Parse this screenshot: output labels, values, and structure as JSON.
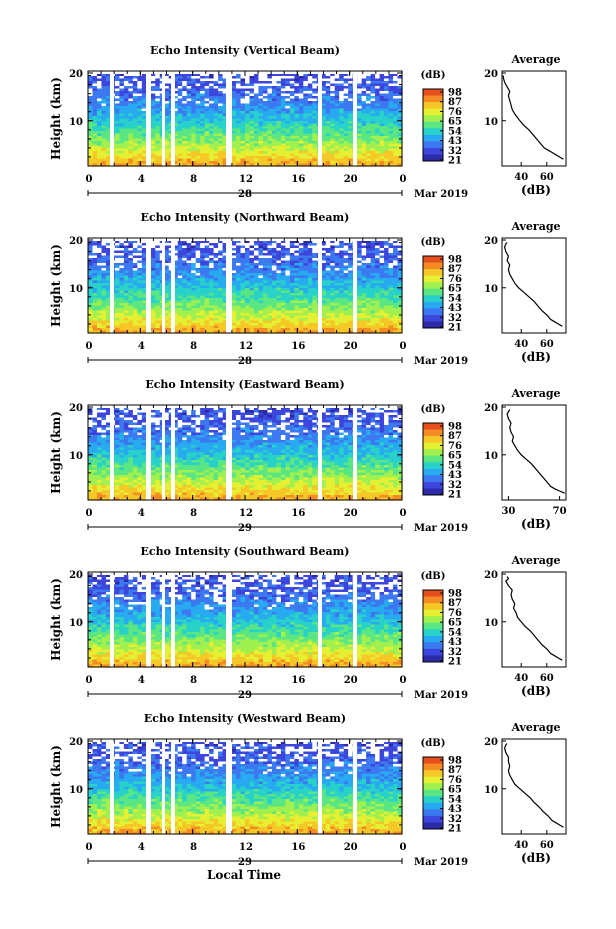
{
  "chart_data": [
    {
      "type": "heatmap",
      "title": "Echo Intensity (Vertical Beam)",
      "ylabel": "Height (km)",
      "x_ticks": [
        "0",
        "4",
        "8",
        "12",
        "16",
        "20",
        "0"
      ],
      "y_ticks": [
        "20",
        "10"
      ],
      "day_label": "28",
      "date_label": "Mar 2019",
      "colorbar": {
        "unit": "(dB)",
        "ticks": [
          "98",
          "87",
          "76",
          "65",
          "54",
          "43",
          "32",
          "21"
        ]
      },
      "profile": {
        "title": "Average",
        "xlabel": "(dB)",
        "x_ticks": [
          "40",
          "60"
        ],
        "y_ticks": [
          "20",
          "10"
        ],
        "xlim": [
          25,
          75
        ],
        "points": [
          [
            73,
            1.5
          ],
          [
            70,
            2
          ],
          [
            67,
            2.5
          ],
          [
            64,
            3
          ],
          [
            61,
            3.5
          ],
          [
            58,
            4
          ],
          [
            55,
            5
          ],
          [
            52,
            6
          ],
          [
            49,
            7
          ],
          [
            46,
            8
          ],
          [
            42,
            9
          ],
          [
            39,
            10
          ],
          [
            35,
            11.5
          ],
          [
            33,
            12.5
          ],
          [
            32,
            13.5
          ],
          [
            31,
            14.5
          ],
          [
            30,
            15.5
          ],
          [
            31,
            16.5
          ],
          [
            29,
            17.5
          ],
          [
            27,
            18.5
          ],
          [
            26,
            19.5
          ],
          [
            26,
            20
          ]
        ]
      }
    },
    {
      "type": "heatmap",
      "title": "Echo Intensity (Northward Beam)",
      "ylabel": "Height (km)",
      "x_ticks": [
        "0",
        "4",
        "8",
        "12",
        "16",
        "20",
        "0"
      ],
      "y_ticks": [
        "20",
        "10"
      ],
      "day_label": "28",
      "date_label": "Mar 2019",
      "colorbar": {
        "unit": "(dB)",
        "ticks": [
          "98",
          "87",
          "76",
          "65",
          "54",
          "43",
          "32",
          "21"
        ]
      },
      "profile": {
        "title": "Average",
        "xlabel": "(dB)",
        "x_ticks": [
          "40",
          "60"
        ],
        "y_ticks": [
          "20",
          "10"
        ],
        "xlim": [
          25,
          75
        ],
        "points": [
          [
            72,
            1.5
          ],
          [
            69,
            2
          ],
          [
            66,
            2.5
          ],
          [
            63,
            3
          ],
          [
            60,
            4
          ],
          [
            56,
            5
          ],
          [
            53,
            6
          ],
          [
            50,
            7
          ],
          [
            46,
            8
          ],
          [
            42,
            9
          ],
          [
            38,
            10
          ],
          [
            35,
            11
          ],
          [
            33,
            12
          ],
          [
            31,
            13
          ],
          [
            30,
            14
          ],
          [
            31,
            15
          ],
          [
            29,
            16
          ],
          [
            30,
            17
          ],
          [
            28,
            18
          ],
          [
            27,
            19
          ],
          [
            28,
            19.7
          ],
          [
            29,
            20
          ]
        ]
      }
    },
    {
      "type": "heatmap",
      "title": "Echo Intensity (Eastward Beam)",
      "ylabel": "Height (km)",
      "x_ticks": [
        "0",
        "4",
        "8",
        "12",
        "16",
        "20",
        "0"
      ],
      "y_ticks": [
        "20",
        "10"
      ],
      "day_label": "29",
      "date_label": "Mar 2019",
      "colorbar": {
        "unit": "(dB)",
        "ticks": [
          "98",
          "87",
          "76",
          "65",
          "54",
          "43",
          "32",
          "21"
        ]
      },
      "profile": {
        "title": "Average",
        "xlabel": "(dB)",
        "x_ticks": [
          "30",
          "70"
        ],
        "y_ticks": [
          "20",
          "10"
        ],
        "xlim": [
          25,
          75
        ],
        "points": [
          [
            74,
            1.5
          ],
          [
            70,
            2
          ],
          [
            66,
            2.5
          ],
          [
            63,
            3
          ],
          [
            60,
            4
          ],
          [
            57,
            5
          ],
          [
            54,
            6
          ],
          [
            51,
            7
          ],
          [
            48,
            8
          ],
          [
            44,
            9
          ],
          [
            40,
            10
          ],
          [
            37,
            11
          ],
          [
            35,
            12
          ],
          [
            33,
            13
          ],
          [
            34,
            14
          ],
          [
            32,
            15
          ],
          [
            31,
            16
          ],
          [
            32,
            17
          ],
          [
            30,
            18
          ],
          [
            29,
            19
          ],
          [
            30,
            19.5
          ],
          [
            31,
            20
          ]
        ]
      }
    },
    {
      "type": "heatmap",
      "title": "Echo Intensity (Southward Beam)",
      "ylabel": "Height (km)",
      "x_ticks": [
        "0",
        "4",
        "8",
        "12",
        "16",
        "20",
        "0"
      ],
      "y_ticks": [
        "20",
        "10"
      ],
      "day_label": "29",
      "date_label": "Mar 2019",
      "colorbar": {
        "unit": "(dB)",
        "ticks": [
          "98",
          "87",
          "76",
          "65",
          "54",
          "43",
          "32",
          "21"
        ]
      },
      "profile": {
        "title": "Average",
        "xlabel": "(dB)",
        "x_ticks": [
          "40",
          "60"
        ],
        "y_ticks": [
          "20",
          "10"
        ],
        "xlim": [
          25,
          75
        ],
        "points": [
          [
            72,
            1.5
          ],
          [
            69,
            2
          ],
          [
            66,
            2.5
          ],
          [
            63,
            3
          ],
          [
            60,
            4
          ],
          [
            56,
            5
          ],
          [
            53,
            6
          ],
          [
            50,
            7
          ],
          [
            47,
            8
          ],
          [
            43,
            9
          ],
          [
            40,
            10
          ],
          [
            37,
            11
          ],
          [
            36,
            12
          ],
          [
            34,
            13
          ],
          [
            35,
            14
          ],
          [
            33,
            15
          ],
          [
            32,
            16
          ],
          [
            33,
            17
          ],
          [
            30,
            18
          ],
          [
            28,
            19
          ],
          [
            30,
            19.5
          ],
          [
            29,
            20
          ]
        ]
      }
    },
    {
      "type": "heatmap",
      "title": "Echo Intensity (Westward Beam)",
      "ylabel": "Height (km)",
      "x_ticks": [
        "0",
        "4",
        "8",
        "12",
        "16",
        "20",
        "0"
      ],
      "y_ticks": [
        "20",
        "10"
      ],
      "day_label": "29",
      "date_label": "Mar 2019",
      "colorbar": {
        "unit": "(dB)",
        "ticks": [
          "98",
          "87",
          "76",
          "65",
          "54",
          "43",
          "32",
          "21"
        ]
      },
      "profile": {
        "title": "Average",
        "xlabel": "(dB)",
        "x_ticks": [
          "40",
          "60"
        ],
        "y_ticks": [
          "20",
          "10"
        ],
        "xlim": [
          25,
          75
        ],
        "points": [
          [
            73,
            1.5
          ],
          [
            70,
            2
          ],
          [
            67,
            2.5
          ],
          [
            64,
            3
          ],
          [
            61,
            4
          ],
          [
            57,
            5
          ],
          [
            54,
            6
          ],
          [
            50,
            7
          ],
          [
            47,
            8
          ],
          [
            43,
            9
          ],
          [
            39,
            10
          ],
          [
            35,
            11
          ],
          [
            33,
            12
          ],
          [
            31,
            13
          ],
          [
            30,
            14
          ],
          [
            31,
            15
          ],
          [
            30,
            16
          ],
          [
            30,
            17
          ],
          [
            28,
            18
          ],
          [
            27,
            19
          ],
          [
            28,
            19.7
          ],
          [
            29,
            20
          ]
        ]
      }
    }
  ],
  "xlabel": "Local Time",
  "colors": {
    "colormap": [
      "#2b2ba8",
      "#3c46dc",
      "#3c78f0",
      "#28aaf0",
      "#28d2c8",
      "#5ae682",
      "#a0f050",
      "#e6f032",
      "#f5c828",
      "#f58c23",
      "#e6501e"
    ],
    "profile_line": "#000000"
  }
}
